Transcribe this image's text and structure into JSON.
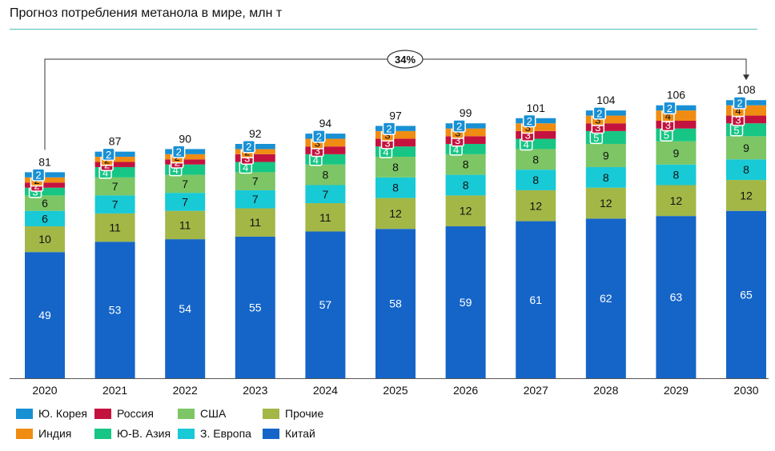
{
  "title": "Прогноз потребления метанола в мире, млн т",
  "growth_badge": "34%",
  "colors": {
    "china": "#1565c8",
    "other": "#a3b747",
    "europe": "#18c9d6",
    "usa": "#7dc565",
    "sea": "#17c684",
    "russia": "#c4123f",
    "india": "#f08c12",
    "korea": "#1890d4"
  },
  "chart_data": {
    "type": "bar",
    "stacked": true,
    "categories": [
      "2020",
      "2021",
      "2022",
      "2023",
      "2024",
      "2025",
      "2026",
      "2027",
      "2028",
      "2029",
      "2030"
    ],
    "series": [
      {
        "key": "china",
        "name": "Китай",
        "values": [
          49,
          53,
          54,
          55,
          57,
          58,
          59,
          61,
          62,
          63,
          65
        ]
      },
      {
        "key": "other",
        "name": "Прочие",
        "values": [
          10,
          11,
          11,
          11,
          11,
          12,
          12,
          12,
          12,
          12,
          12
        ]
      },
      {
        "key": "europe",
        "name": "З. Европа",
        "values": [
          6,
          7,
          7,
          7,
          7,
          8,
          8,
          8,
          8,
          8,
          8
        ]
      },
      {
        "key": "usa",
        "name": "США",
        "values": [
          6,
          7,
          7,
          7,
          8,
          8,
          8,
          8,
          9,
          9,
          9
        ]
      },
      {
        "key": "sea",
        "name": "Ю-В. Азия",
        "values": [
          3,
          4,
          4,
          4,
          4,
          4,
          4,
          4,
          5,
          5,
          5
        ]
      },
      {
        "key": "russia",
        "name": "Россия",
        "values": [
          2,
          2,
          2,
          3,
          3,
          3,
          3,
          3,
          3,
          3,
          3
        ]
      },
      {
        "key": "india",
        "name": "Индия",
        "values": [
          2,
          2,
          2,
          2,
          3,
          3,
          3,
          3,
          3,
          4,
          4
        ]
      },
      {
        "key": "korea",
        "name": "Ю. Корея",
        "values": [
          2,
          2,
          2,
          2,
          2,
          2,
          2,
          2,
          2,
          2,
          2
        ]
      }
    ],
    "totals": [
      81,
      87,
      90,
      92,
      94,
      97,
      99,
      101,
      104,
      106,
      108
    ],
    "legend_order": [
      "korea",
      "russia",
      "usa",
      "other",
      "india",
      "sea",
      "europe",
      "china"
    ],
    "ylim": [
      0,
      110
    ],
    "legend": "bottom-left"
  }
}
